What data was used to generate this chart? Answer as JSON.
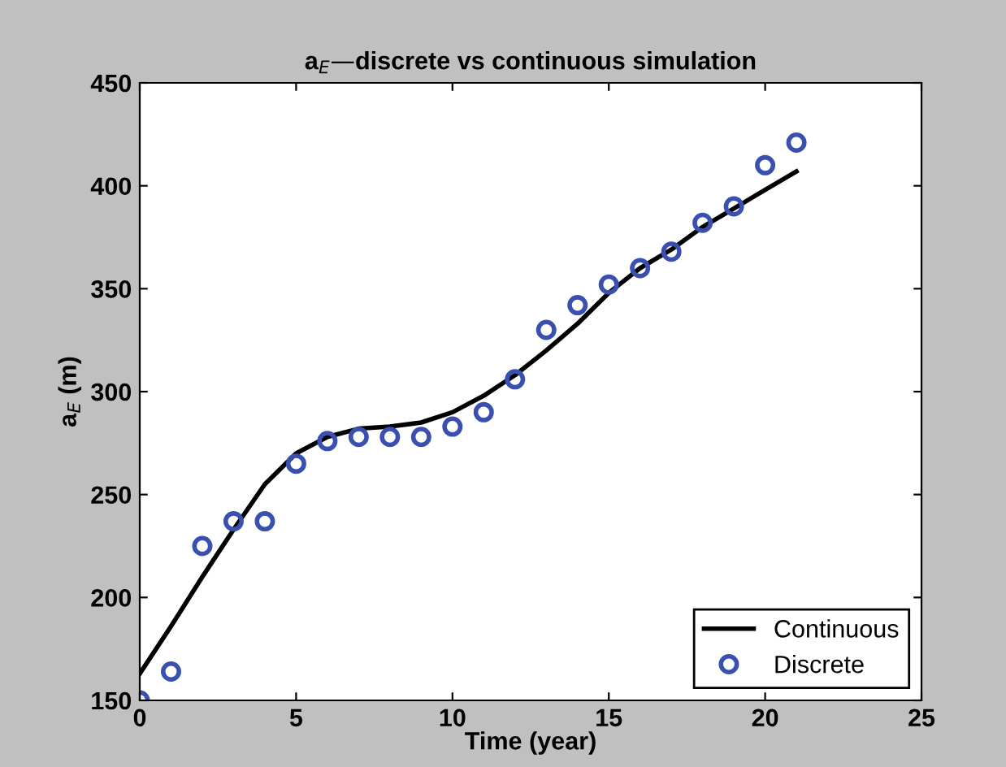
{
  "chart_data": {
    "type": "line",
    "title": "a$_{E}$—discrete vs continuous simulation",
    "xlabel": "Time (year)",
    "ylabel": "a$_{E}$ (m)",
    "xlim": [
      0,
      25
    ],
    "ylim": [
      150,
      450
    ],
    "xticks": [
      0,
      5,
      10,
      15,
      20,
      25
    ],
    "yticks": [
      150,
      200,
      250,
      300,
      350,
      400,
      450
    ],
    "grid": false,
    "legend": "bottom right",
    "series": [
      {
        "name": "Continuous",
        "color": "#000000",
        "marker": "none",
        "line_style": "solid",
        "x": [
          0,
          1,
          2,
          3,
          4,
          5,
          6,
          7,
          8,
          9,
          10,
          11,
          12,
          13,
          14,
          15,
          16,
          17,
          18,
          19,
          20,
          21
        ],
        "values": [
          163,
          186,
          210,
          233,
          255,
          270,
          278,
          282,
          283,
          285,
          290,
          298,
          308,
          320,
          333,
          348,
          360,
          369,
          380,
          389,
          398,
          407
        ]
      },
      {
        "name": "Discrete",
        "type": "scatter",
        "color": "#3a50b0",
        "marker": "circle",
        "x": [
          0,
          1,
          2,
          3,
          4,
          5,
          6,
          7,
          8,
          9,
          10,
          11,
          12,
          13,
          14,
          15,
          16,
          17,
          18,
          19,
          20,
          21
        ],
        "values": [
          150,
          164,
          225,
          237,
          237,
          265,
          276,
          278,
          278,
          278,
          283,
          290,
          306,
          330,
          342,
          352,
          360,
          368,
          382,
          390,
          410,
          421
        ]
      }
    ]
  }
}
